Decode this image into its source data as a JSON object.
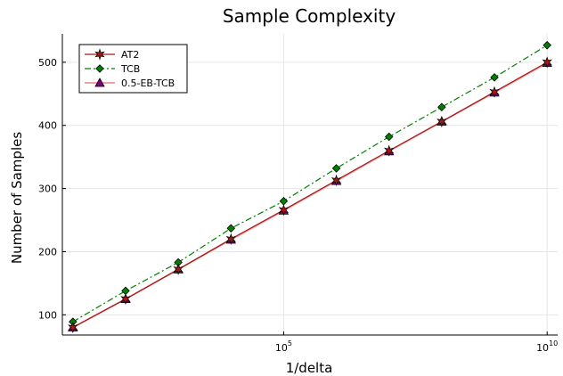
{
  "chart_data": {
    "type": "line",
    "title": "Sample Complexity",
    "xlabel": "1/delta",
    "ylabel": "Number of Samples",
    "x_scale": "log",
    "x_exponents": [
      1,
      2,
      3,
      4,
      5,
      6,
      7,
      8,
      9,
      10
    ],
    "xlim_exponent": [
      0.8,
      10.2
    ],
    "ylim": [
      68,
      545
    ],
    "x_ticks": [
      {
        "base": "10",
        "exp": "5",
        "value_exponent": 5
      },
      {
        "base": "10",
        "exp": "10",
        "value_exponent": 10
      }
    ],
    "y_ticks": [
      100,
      200,
      300,
      400,
      500
    ],
    "grid": true,
    "legend_position": "top-left",
    "series": [
      {
        "name": "AT2",
        "color": "#a01818",
        "line_style": "solid",
        "marker": "star",
        "values": [
          80,
          125,
          172,
          220,
          266,
          313,
          360,
          406,
          453,
          500
        ]
      },
      {
        "name": "TCB",
        "color": "#008000",
        "line_style": "dashdot",
        "marker": "diamond",
        "values": [
          89,
          138,
          183,
          237,
          280,
          332,
          382,
          429,
          476,
          527
        ]
      },
      {
        "name": "0.5-EB-TCB",
        "color": "#800080",
        "line_color": "#f4a0a0",
        "line_style": "solid",
        "marker": "triangle",
        "values": [
          80,
          125,
          172,
          219,
          265,
          312,
          359,
          406,
          452,
          499
        ]
      }
    ]
  }
}
